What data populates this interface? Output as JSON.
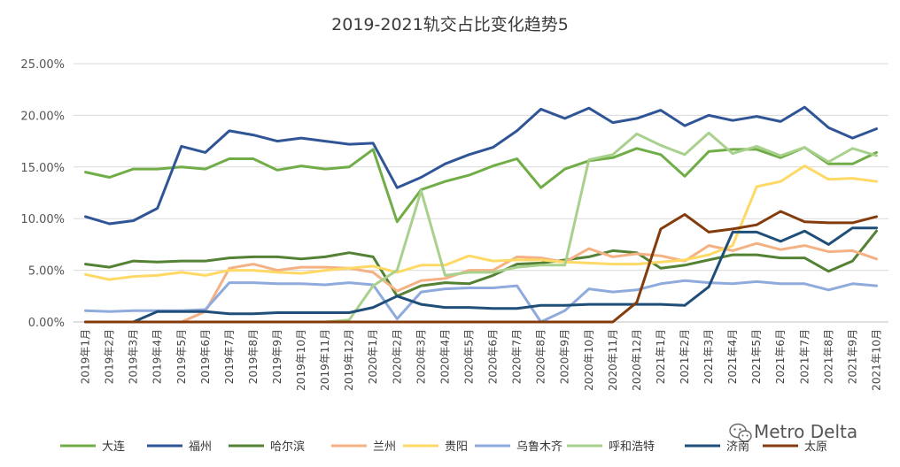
{
  "chart_data": {
    "type": "line",
    "title": "2019-2021轨交占比变化趋势5",
    "xlabel": "",
    "ylabel": "",
    "ylim": [
      0,
      25
    ],
    "yticks": [
      "0.00%",
      "5.00%",
      "10.00%",
      "15.00%",
      "20.00%",
      "25.00%"
    ],
    "grid": true,
    "legend_position": "bottom",
    "categories": [
      "2019年1月",
      "2019年2月",
      "2019年3月",
      "2019年4月",
      "2019年5月",
      "2019年6月",
      "2019年7月",
      "2019年8月",
      "2019年9月",
      "2019年10月",
      "2019年11月",
      "2019年12月",
      "2020年1月",
      "2020年2月",
      "2020年3月",
      "2020年4月",
      "2020年5月",
      "2020年6月",
      "2020年7月",
      "2020年8月",
      "2020年9月",
      "2020年10月",
      "2020年11月",
      "2020年12月",
      "2021年1月",
      "2021年2月",
      "2021年3月",
      "2021年4月",
      "2021年5月",
      "2021年6月",
      "2021年7月",
      "2021年8月",
      "2021年9月",
      "2021年10月"
    ],
    "series": [
      {
        "name": "大连",
        "color": "#70ad47",
        "values": [
          14.5,
          14.0,
          14.8,
          14.8,
          15.0,
          14.8,
          15.8,
          15.8,
          14.7,
          15.1,
          14.8,
          15.0,
          16.7,
          9.7,
          12.8,
          13.6,
          14.2,
          15.1,
          15.8,
          13.0,
          14.8,
          15.6,
          15.9,
          16.8,
          16.2,
          14.1,
          16.5,
          16.7,
          16.7,
          15.9,
          16.9,
          15.3,
          15.3,
          16.4
        ]
      },
      {
        "name": "福州",
        "color": "#2f5597",
        "values": [
          10.2,
          9.5,
          9.8,
          11.0,
          17.0,
          16.4,
          18.5,
          18.1,
          17.5,
          17.8,
          17.5,
          17.2,
          17.3,
          13.0,
          14.0,
          15.3,
          16.2,
          16.9,
          18.5,
          20.6,
          19.7,
          20.7,
          19.3,
          19.7,
          20.5,
          19.0,
          20.0,
          19.5,
          19.9,
          19.4,
          20.8,
          18.8,
          17.8,
          18.7
        ]
      },
      {
        "name": "哈尔滨",
        "color": "#548235",
        "values": [
          5.6,
          5.3,
          5.9,
          5.8,
          5.9,
          5.9,
          6.2,
          6.3,
          6.3,
          6.1,
          6.3,
          6.7,
          6.3,
          2.5,
          3.5,
          3.8,
          3.7,
          4.5,
          5.6,
          5.7,
          6.0,
          6.3,
          6.9,
          6.7,
          5.2,
          5.5,
          6.0,
          6.5,
          6.5,
          6.2,
          6.2,
          4.9,
          5.9,
          8.8
        ]
      },
      {
        "name": "兰州",
        "color": "#f4b183",
        "values": [
          0,
          0,
          0,
          0,
          0,
          1.0,
          5.2,
          5.6,
          5.0,
          5.3,
          5.3,
          5.2,
          4.8,
          3.0,
          4.0,
          4.2,
          5.0,
          5.0,
          6.3,
          6.2,
          5.8,
          7.1,
          6.3,
          6.6,
          6.4,
          5.9,
          7.4,
          6.9,
          7.6,
          7.0,
          7.4,
          6.8,
          6.9,
          6.1
        ]
      },
      {
        "name": "贵阳",
        "color": "#ffd966",
        "values": [
          4.6,
          4.1,
          4.4,
          4.5,
          4.8,
          4.5,
          5.0,
          5.0,
          4.8,
          4.7,
          5.0,
          5.2,
          5.4,
          4.8,
          5.5,
          5.5,
          6.4,
          5.9,
          6.0,
          6.0,
          5.8,
          5.7,
          5.6,
          5.6,
          5.8,
          6.0,
          6.5,
          7.4,
          13.1,
          13.6,
          15.1,
          13.8,
          13.9,
          13.6
        ]
      },
      {
        "name": "乌鲁木齐",
        "color": "#8faadc",
        "values": [
          1.1,
          1.0,
          1.1,
          1.1,
          1.1,
          1.2,
          3.8,
          3.8,
          3.7,
          3.7,
          3.6,
          3.8,
          3.6,
          0.3,
          2.9,
          3.2,
          3.3,
          3.3,
          3.5,
          0,
          1.1,
          3.2,
          2.9,
          3.1,
          3.7,
          4.0,
          3.8,
          3.7,
          3.9,
          3.7,
          3.7,
          3.1,
          3.7,
          3.5
        ]
      },
      {
        "name": "呼和浩特",
        "color": "#a9d18e",
        "values": [
          0,
          0,
          0,
          0,
          0,
          0,
          0,
          0,
          0,
          0,
          0,
          0.2,
          3.5,
          5.0,
          12.7,
          4.5,
          4.8,
          4.8,
          5.3,
          5.5,
          5.5,
          15.7,
          16.2,
          18.2,
          17.1,
          16.2,
          18.3,
          16.3,
          17.0,
          16.1,
          16.9,
          15.5,
          16.8,
          16.1
        ]
      },
      {
        "name": "济南",
        "color": "#1f4e79",
        "values": [
          0,
          0,
          0,
          1.0,
          1.0,
          1.0,
          0.8,
          0.8,
          0.9,
          0.9,
          0.9,
          0.9,
          1.4,
          2.5,
          1.7,
          1.4,
          1.4,
          1.3,
          1.3,
          1.6,
          1.6,
          1.7,
          1.7,
          1.7,
          1.7,
          1.6,
          3.4,
          8.7,
          8.7,
          7.8,
          8.8,
          7.5,
          9.1,
          9.1
        ]
      },
      {
        "name": "太原",
        "color": "#843c0c",
        "values": [
          0,
          0,
          0,
          0,
          0,
          0,
          0,
          0,
          0,
          0,
          0,
          0,
          0,
          0,
          0,
          0,
          0,
          0,
          0,
          0,
          0,
          0,
          0,
          1.9,
          9.0,
          10.4,
          8.7,
          9.0,
          9.4,
          10.7,
          9.7,
          9.6,
          9.6,
          10.2
        ]
      }
    ]
  },
  "watermark": {
    "icon": "wechat-icon",
    "text": "Metro Delta"
  }
}
